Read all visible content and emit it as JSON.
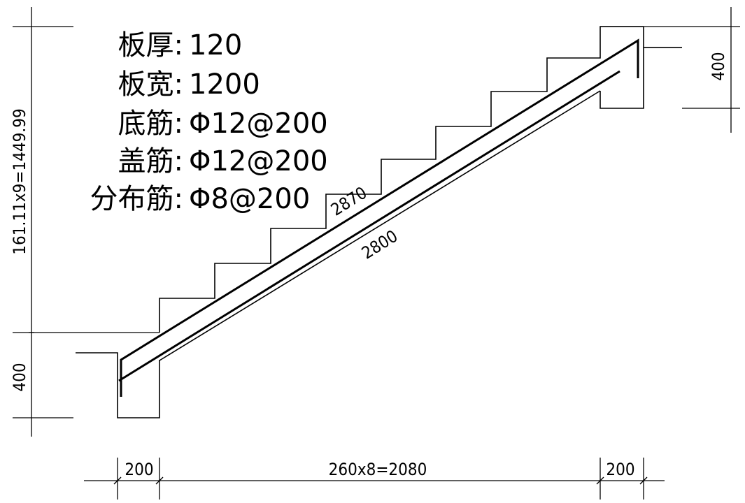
{
  "notes": [
    {
      "label": "板厚:",
      "value": "120"
    },
    {
      "label": "板宽:",
      "value": "1200"
    },
    {
      "label": "底筋:",
      "value": "Φ12@200"
    },
    {
      "label": "盖筋:",
      "value": "Φ12@200"
    },
    {
      "label": "分布筋:",
      "value": "Φ8@200"
    }
  ],
  "dimensions": {
    "height_total": "161.11x9=1449.99",
    "left_support": "400",
    "right_support": "400",
    "bottom_left": "200",
    "bottom_middle": "260x8=2080",
    "bottom_right": "200"
  },
  "rebar_labels": {
    "top_bar": "2870",
    "bottom_bar": "2800"
  }
}
